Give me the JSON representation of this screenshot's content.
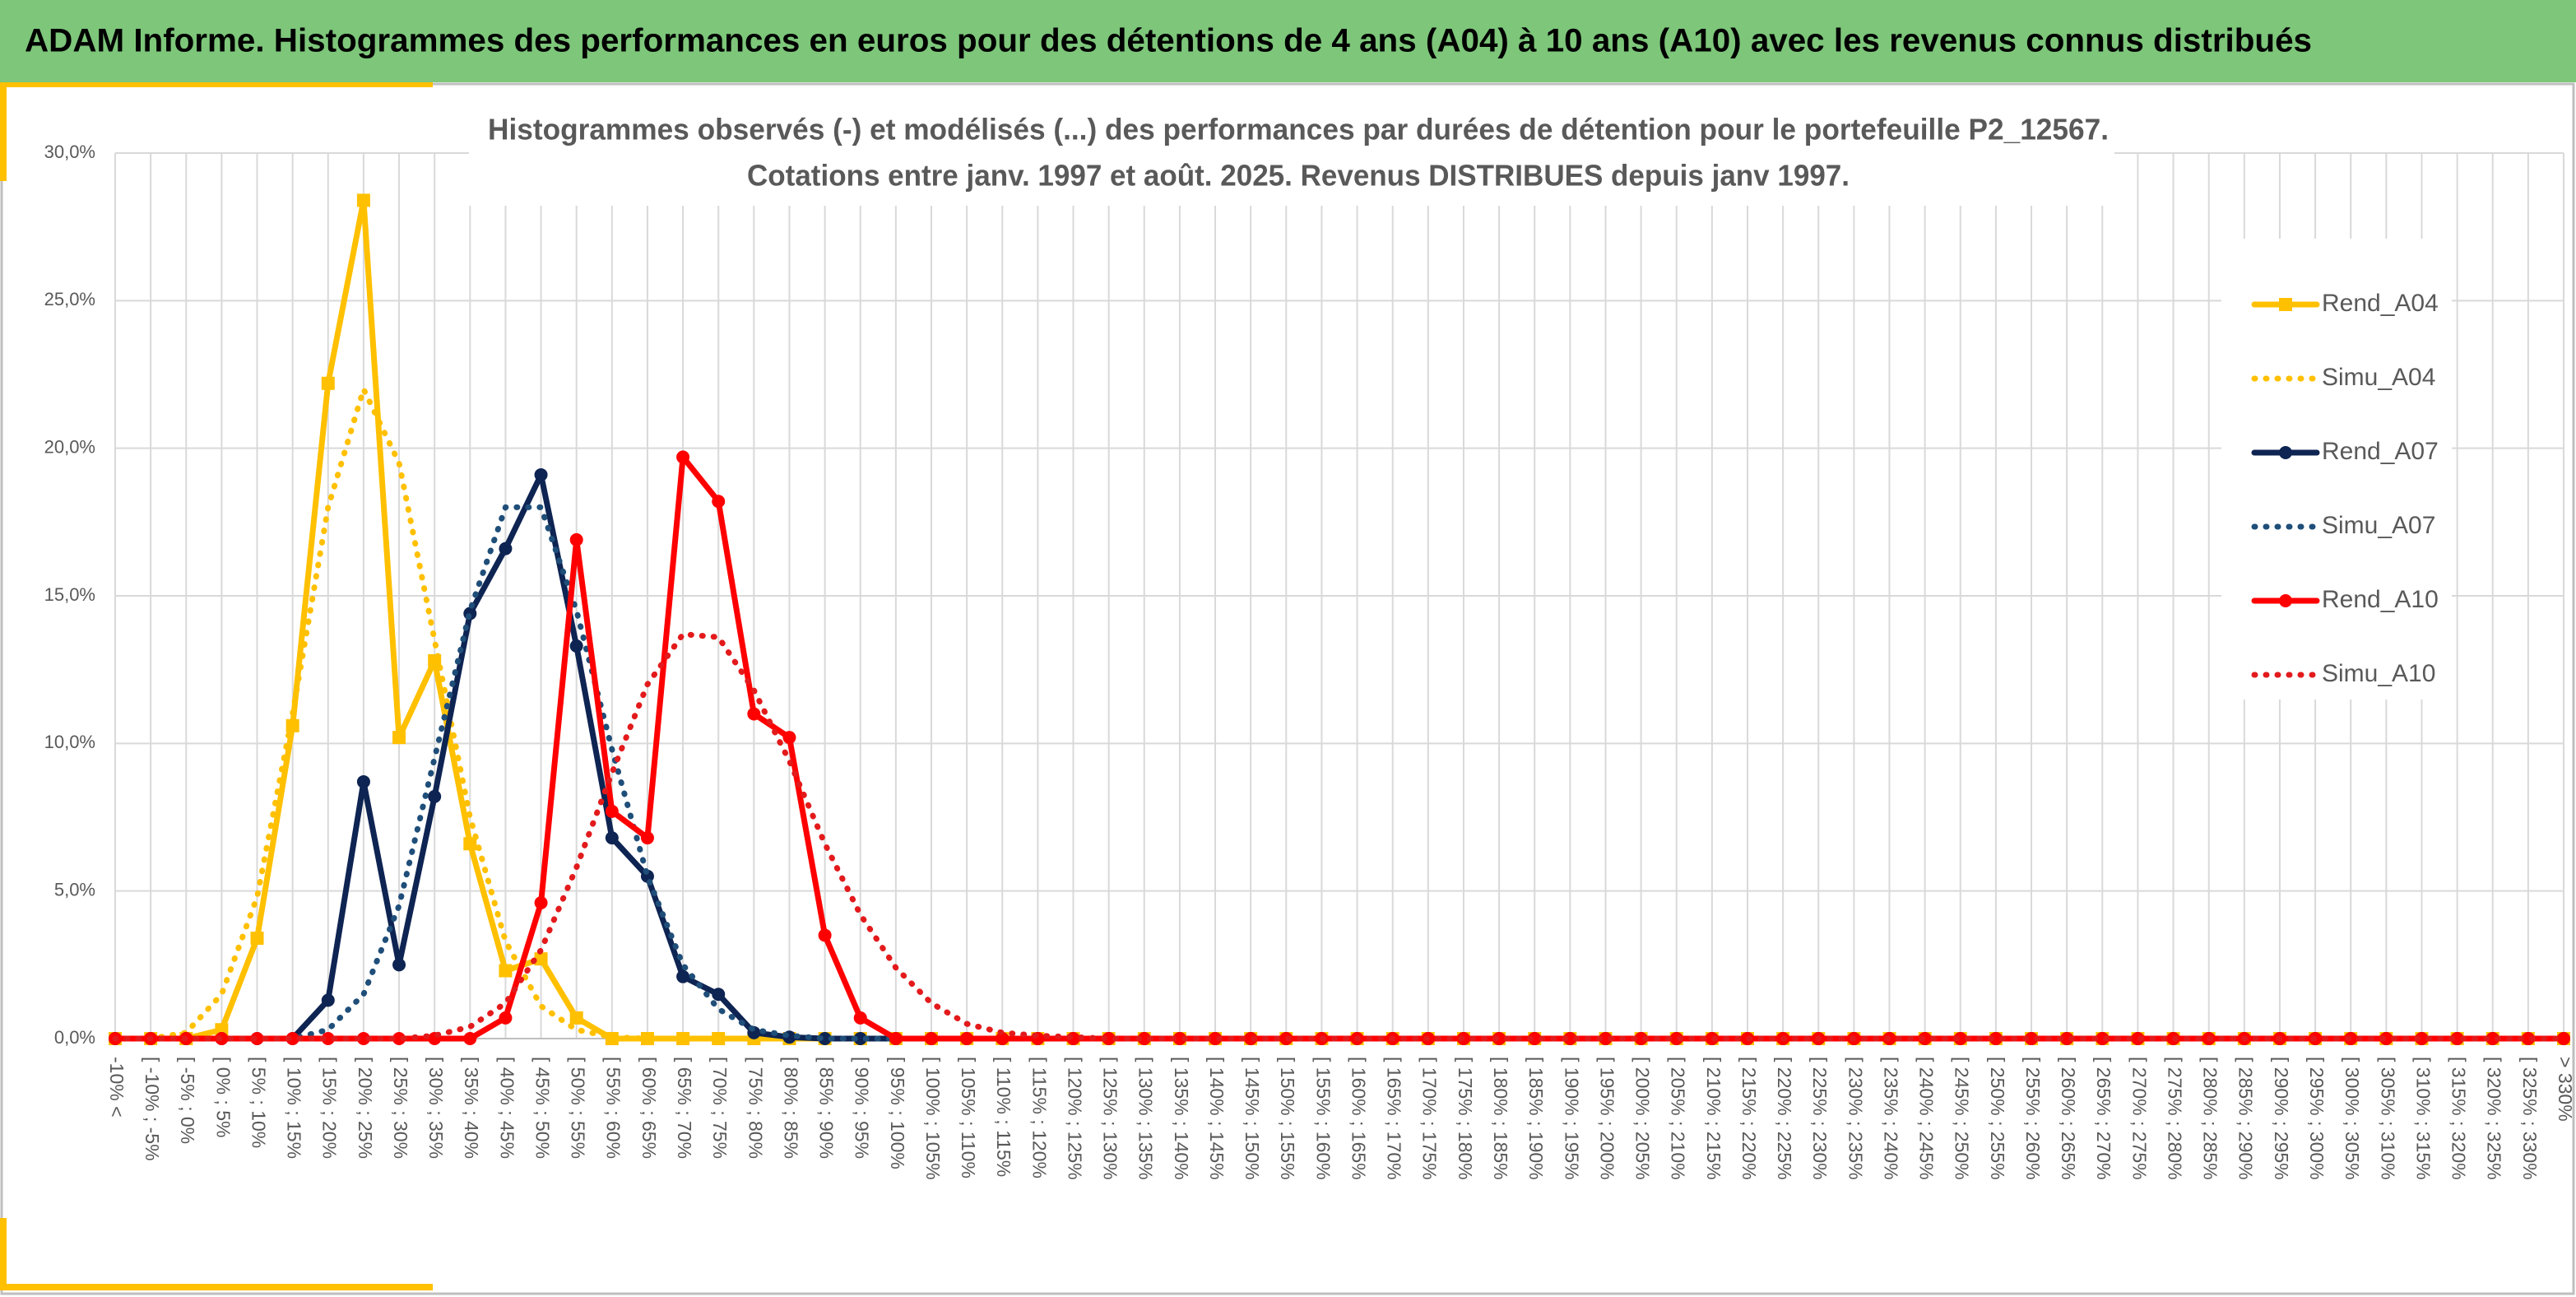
{
  "header": {
    "title": "ADAM Informe. Histogrammes des performances en euros pour des détentions de 4 ans (A04) à 10 ans (A10) avec les revenus connus distribués"
  },
  "chart_data": {
    "type": "line",
    "title": [
      "Histogrammes observés (-) et modélisés (...) des performances par durées de détention pour le portefeuille P2_12567.",
      "Cotations entre janv. 1997 et août. 2025. Revenus DISTRIBUES depuis janv 1997."
    ],
    "categories": [
      "-10% <",
      "[ -10% ; -5%",
      "[ -5% ; 0%",
      "[ 0% ; 5%",
      "[ 5% ; 10%",
      "[ 10% ; 15%",
      "[ 15% ; 20%",
      "[ 20% ; 25%",
      "[ 25% ; 30%",
      "[ 30% ; 35%",
      "[ 35% ; 40%",
      "[ 40% ; 45%",
      "[ 45% ; 50%",
      "[ 50% ; 55%",
      "[ 55% ; 60%",
      "[ 60% ; 65%",
      "[ 65% ; 70%",
      "[ 70% ; 75%",
      "[ 75% ; 80%",
      "[ 80% ; 85%",
      "[ 85% ; 90%",
      "[ 90% ; 95%",
      "[ 95% ; 100%",
      "[ 100% ; 105%",
      "[ 105% ; 110%",
      "[ 110% ; 115%",
      "[ 115% ; 120%",
      "[ 120% ; 125%",
      "[ 125% ; 130%",
      "[ 130% ; 135%",
      "[ 135% ; 140%",
      "[ 140% ; 145%",
      "[ 145% ; 150%",
      "[ 150% ; 155%",
      "[ 155% ; 160%",
      "[ 160% ; 165%",
      "[ 165% ; 170%",
      "[ 170% ; 175%",
      "[ 175% ; 180%",
      "[ 180% ; 185%",
      "[ 185% ; 190%",
      "[ 190% ; 195%",
      "[ 195% ; 200%",
      "[ 200% ; 205%",
      "[ 205% ; 210%",
      "[ 210% ; 215%",
      "[ 215% ; 220%",
      "[ 220% ; 225%",
      "[ 225% ; 230%",
      "[ 230% ; 235%",
      "[ 235% ; 240%",
      "[ 240% ; 245%",
      "[ 245% ; 250%",
      "[ 250% ; 255%",
      "[ 255% ; 260%",
      "[ 260% ; 265%",
      "[ 265% ; 270%",
      "[ 270% ; 275%",
      "[ 275% ; 280%",
      "[ 280% ; 285%",
      "[ 285% ; 290%",
      "[ 290% ; 295%",
      "[ 295% ; 300%",
      "[ 300% ; 305%",
      "[ 305% ; 310%",
      "[ 310% ; 315%",
      "[ 315% ; 320%",
      "[ 320% ; 325%",
      "[ 325% ; 330%",
      "> 330%"
    ],
    "series": [
      {
        "name": "Rend_A04",
        "color": "#ffc000",
        "style": "solid",
        "marker": "square",
        "values": [
          0,
          0,
          0,
          0.3,
          3.4,
          10.6,
          22.2,
          28.4,
          10.2,
          12.8,
          6.6,
          2.3,
          2.7,
          0.7,
          0,
          0,
          0,
          0,
          0,
          0,
          0,
          0,
          0,
          0,
          0,
          0,
          0,
          0,
          0,
          0,
          0,
          0,
          0,
          0,
          0,
          0,
          0,
          0,
          0,
          0,
          0,
          0,
          0,
          0,
          0,
          0,
          0,
          0,
          0,
          0,
          0,
          0,
          0,
          0,
          0,
          0,
          0,
          0,
          0,
          0,
          0,
          0,
          0,
          0,
          0,
          0,
          0,
          0,
          0,
          0
        ]
      },
      {
        "name": "Simu_A04",
        "color": "#ffc000",
        "style": "dot",
        "values": [
          0,
          0,
          0.2,
          1.5,
          4.8,
          11,
          18,
          22,
          19.5,
          13.5,
          7.5,
          3.3,
          1.1,
          0.3,
          0.05,
          0,
          0,
          0,
          0,
          0,
          0,
          0,
          0,
          0,
          0,
          0,
          0,
          0,
          0,
          0,
          0,
          0,
          0,
          0,
          0,
          0,
          0,
          0,
          0,
          0,
          0,
          0,
          0,
          0,
          0,
          0,
          0,
          0,
          0,
          0,
          0,
          0,
          0,
          0,
          0,
          0,
          0,
          0,
          0,
          0,
          0,
          0,
          0,
          0,
          0,
          0,
          0,
          0,
          0,
          0
        ]
      },
      {
        "name": "Rend_A07",
        "color": "#0e2452",
        "style": "solid",
        "marker": "circle",
        "values": [
          0,
          0,
          0,
          0,
          0,
          0,
          1.3,
          8.7,
          2.5,
          8.2,
          14.4,
          16.6,
          19.1,
          13.3,
          6.8,
          5.5,
          2.1,
          1.5,
          0.2,
          0.05,
          0,
          0,
          0,
          0,
          0,
          0,
          0,
          0,
          0,
          0,
          0,
          0,
          0,
          0,
          0,
          0,
          0,
          0,
          0,
          0,
          0,
          0,
          0,
          0,
          0,
          0,
          0,
          0,
          0,
          0,
          0,
          0,
          0,
          0,
          0,
          0,
          0,
          0,
          0,
          0,
          0,
          0,
          0,
          0,
          0,
          0,
          0,
          0,
          0,
          0
        ]
      },
      {
        "name": "Simu_A07",
        "color": "#1f4e79",
        "style": "dot",
        "values": [
          0,
          0,
          0,
          0,
          0,
          0,
          0.3,
          1.5,
          4.5,
          9.5,
          14.5,
          18,
          18,
          14.5,
          9.8,
          5.5,
          2.5,
          1,
          0.3,
          0.1,
          0,
          0,
          0,
          0,
          0,
          0,
          0,
          0,
          0,
          0,
          0,
          0,
          0,
          0,
          0,
          0,
          0,
          0,
          0,
          0,
          0,
          0,
          0,
          0,
          0,
          0,
          0,
          0,
          0,
          0,
          0,
          0,
          0,
          0,
          0,
          0,
          0,
          0,
          0,
          0,
          0,
          0,
          0,
          0,
          0,
          0,
          0,
          0,
          0,
          0
        ]
      },
      {
        "name": "Rend_A10",
        "color": "#ff0000",
        "style": "solid",
        "marker": "circle",
        "values": [
          0,
          0,
          0,
          0,
          0,
          0,
          0,
          0,
          0,
          0,
          0,
          0.7,
          4.6,
          16.9,
          7.7,
          6.8,
          19.7,
          18.2,
          11,
          10.2,
          3.5,
          0.7,
          0,
          0,
          0,
          0,
          0,
          0,
          0,
          0,
          0,
          0,
          0,
          0,
          0,
          0,
          0,
          0,
          0,
          0,
          0,
          0,
          0,
          0,
          0,
          0,
          0,
          0,
          0,
          0,
          0,
          0,
          0,
          0,
          0,
          0,
          0,
          0,
          0,
          0,
          0,
          0,
          0,
          0,
          0,
          0,
          0,
          0,
          0,
          0
        ]
      },
      {
        "name": "Simu_A10",
        "color": "#e31a1c",
        "style": "dot",
        "values": [
          0,
          0,
          0,
          0,
          0,
          0,
          0,
          0,
          0,
          0.1,
          0.4,
          1.2,
          3,
          5.8,
          9,
          12,
          13.7,
          13.6,
          11.8,
          9.4,
          6.6,
          4.2,
          2.4,
          1.2,
          0.5,
          0.2,
          0.1,
          0.05,
          0,
          0,
          0,
          0,
          0,
          0,
          0,
          0,
          0,
          0,
          0,
          0,
          0,
          0,
          0,
          0,
          0,
          0,
          0,
          0,
          0,
          0,
          0,
          0,
          0,
          0,
          0,
          0,
          0,
          0,
          0,
          0,
          0,
          0,
          0,
          0,
          0,
          0,
          0,
          0,
          0,
          0
        ]
      }
    ],
    "ylim": [
      0,
      30
    ],
    "yticks": [
      {
        "value": 0,
        "label": "0,0%"
      },
      {
        "value": 5,
        "label": "5,0%"
      },
      {
        "value": 10,
        "label": "10,0%"
      },
      {
        "value": 15,
        "label": "15,0%"
      },
      {
        "value": 20,
        "label": "20,0%"
      },
      {
        "value": 25,
        "label": "25,0%"
      },
      {
        "value": 30,
        "label": "30,0%"
      }
    ],
    "grid": true,
    "legend": "right"
  }
}
